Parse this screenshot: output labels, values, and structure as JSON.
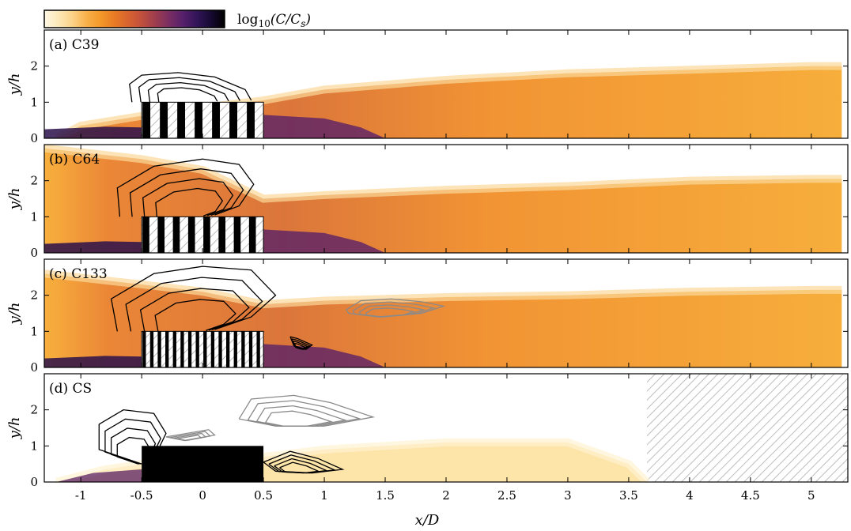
{
  "chart_data": {
    "type": "heatmap",
    "colorbar": {
      "label": "log10(C/Cs)",
      "colors": [
        "#fff8e6",
        "#fde9b8",
        "#fcd38a",
        "#f9b24d",
        "#f39a2a",
        "#e97c25",
        "#d9642f",
        "#c0503c",
        "#9e3d4f",
        "#7a2d62",
        "#56206b",
        "#321459",
        "#160a32",
        "#000000"
      ]
    },
    "xlabel": "x/D",
    "ylabel": "y/h",
    "xlim": [
      -1.3,
      5.3
    ],
    "ylim": [
      0,
      3
    ],
    "xticks": [
      -1,
      -0.5,
      0,
      0.5,
      1,
      1.5,
      2,
      2.5,
      3,
      3.5,
      4,
      4.5,
      5
    ],
    "xtick_labels": [
      "-1",
      "-0.5",
      "0",
      "0.5",
      "1",
      "1.5",
      "2",
      "2.5",
      "3",
      "3.5",
      "4",
      "4.5",
      "5"
    ],
    "yticks": [
      0,
      1,
      2
    ],
    "ytick_labels": [
      "0",
      "1",
      "2"
    ],
    "canopy": {
      "x_start": -0.5,
      "x_end": 0.5,
      "height": 1.0
    },
    "panels": [
      {
        "label": "(a) C39",
        "stripes": 7,
        "plume": [
          [
            -1.2,
            0.0
          ],
          [
            -1.0,
            0.35
          ],
          [
            -0.5,
            0.62
          ],
          [
            0.0,
            0.85
          ],
          [
            0.5,
            1.05
          ],
          [
            1.0,
            1.35
          ],
          [
            2.0,
            1.62
          ],
          [
            3.0,
            1.8
          ],
          [
            4.0,
            1.9
          ],
          [
            5.0,
            2.0
          ],
          [
            5.25,
            2.0
          ]
        ],
        "contours_black": [
          [
            [
              -0.58,
              1.0
            ],
            [
              -0.6,
              1.5
            ],
            [
              -0.5,
              1.75
            ],
            [
              -0.2,
              1.82
            ],
            [
              0.1,
              1.7
            ],
            [
              0.35,
              1.35
            ],
            [
              0.4,
              1.05
            ]
          ]
        ],
        "contours_gray": []
      },
      {
        "label": "(b) C64",
        "stripes": 8,
        "plume": [
          [
            -1.3,
            2.9
          ],
          [
            -0.5,
            2.6
          ],
          [
            0.0,
            2.3
          ],
          [
            0.5,
            1.5
          ],
          [
            1.0,
            1.6
          ],
          [
            2.0,
            1.75
          ],
          [
            3.0,
            1.85
          ],
          [
            4.0,
            2.0
          ],
          [
            5.0,
            2.05
          ],
          [
            5.25,
            2.05
          ]
        ],
        "contours_black": [
          [
            [
              -0.68,
              1.0
            ],
            [
              -0.7,
              1.8
            ],
            [
              -0.4,
              2.4
            ],
            [
              0.0,
              2.6
            ],
            [
              0.3,
              2.45
            ],
            [
              0.42,
              1.9
            ],
            [
              0.3,
              1.3
            ],
            [
              0.1,
              1.05
            ]
          ]
        ],
        "contours_gray": []
      },
      {
        "label": "(c) C133",
        "stripes": 16,
        "plume": [
          [
            -1.3,
            2.6
          ],
          [
            -0.5,
            2.3
          ],
          [
            0.0,
            2.1
          ],
          [
            0.5,
            1.75
          ],
          [
            1.0,
            1.85
          ],
          [
            2.0,
            1.95
          ],
          [
            3.0,
            2.0
          ],
          [
            4.0,
            2.1
          ],
          [
            5.0,
            2.15
          ],
          [
            5.25,
            2.15
          ]
        ],
        "contours_black": [
          [
            [
              -0.7,
              1.0
            ],
            [
              -0.75,
              1.9
            ],
            [
              -0.4,
              2.6
            ],
            [
              0.0,
              2.8
            ],
            [
              0.4,
              2.7
            ],
            [
              0.6,
              2.0
            ],
            [
              0.4,
              1.4
            ],
            [
              0.1,
              1.05
            ]
          ],
          [
            [
              0.72,
              0.85
            ],
            [
              0.78,
              0.8
            ],
            [
              0.9,
              0.62
            ],
            [
              0.85,
              0.5
            ],
            [
              0.75,
              0.6
            ],
            [
              0.72,
              0.85
            ]
          ]
        ],
        "contours_gray": [
          [
            [
              1.18,
              1.6
            ],
            [
              1.3,
              1.85
            ],
            [
              1.55,
              1.9
            ],
            [
              1.8,
              1.82
            ],
            [
              1.98,
              1.7
            ],
            [
              1.8,
              1.5
            ],
            [
              1.45,
              1.4
            ],
            [
              1.2,
              1.5
            ],
            [
              1.18,
              1.6
            ]
          ]
        ]
      },
      {
        "label": "(d) CS",
        "stripes": 0,
        "plume": [
          [
            -1.2,
            0.0
          ],
          [
            -0.8,
            0.35
          ],
          [
            -0.5,
            0.5
          ],
          [
            0.5,
            0.7
          ],
          [
            1.0,
            0.9
          ],
          [
            2.0,
            1.1
          ],
          [
            3.0,
            1.1
          ],
          [
            3.5,
            0.5
          ],
          [
            3.65,
            0.0
          ]
        ],
        "hatch_region": {
          "x_start": 3.65,
          "x_end": 5.3
        },
        "contours_black": [
          [
            [
              -0.5,
              0.5
            ],
            [
              -0.85,
              0.9
            ],
            [
              -0.85,
              1.6
            ],
            [
              -0.65,
              2.0
            ],
            [
              -0.4,
              1.9
            ],
            [
              -0.3,
              1.35
            ],
            [
              -0.35,
              1.0
            ]
          ],
          [
            [
              0.5,
              0.55
            ],
            [
              0.72,
              0.85
            ],
            [
              0.95,
              0.65
            ],
            [
              1.15,
              0.35
            ],
            [
              0.9,
              0.25
            ],
            [
              0.6,
              0.3
            ],
            [
              0.5,
              0.55
            ]
          ]
        ],
        "contours_gray": [
          [
            [
              0.3,
              1.75
            ],
            [
              0.4,
              2.3
            ],
            [
              0.75,
              2.4
            ],
            [
              1.05,
              2.2
            ],
            [
              1.4,
              1.8
            ],
            [
              1.0,
              1.55
            ],
            [
              0.6,
              1.55
            ],
            [
              0.3,
              1.75
            ]
          ],
          [
            [
              -0.3,
              1.25
            ],
            [
              0.05,
              1.45
            ],
            [
              0.1,
              1.3
            ],
            [
              -0.15,
              1.15
            ],
            [
              -0.3,
              1.25
            ]
          ]
        ]
      }
    ]
  }
}
